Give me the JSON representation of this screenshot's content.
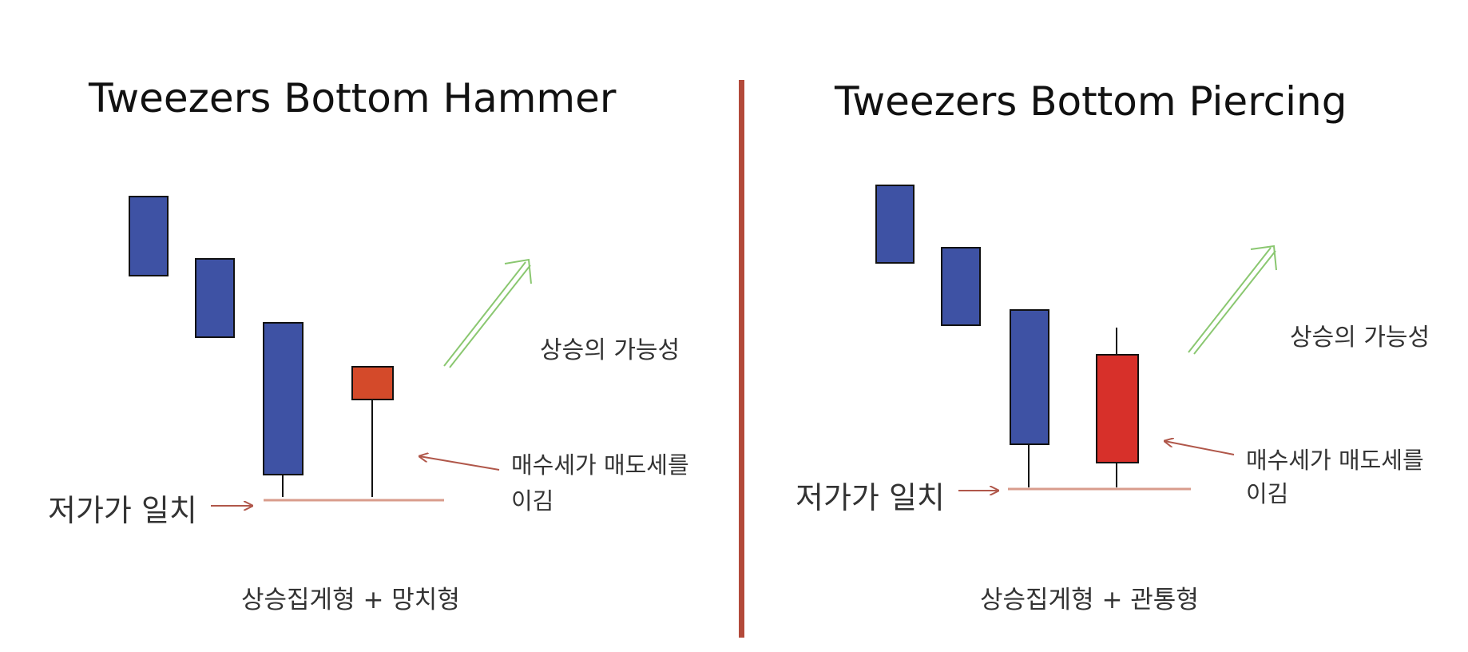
{
  "colors": {
    "bearish": "#3e52a4",
    "bullish_small": "#d44a2a",
    "bullish_large": "#d7302a",
    "divider": "#b34a3a",
    "arrow": "#b0574a",
    "support_line": "#d99c8c",
    "up_arrow": "#8ac770"
  },
  "panels": [
    {
      "title": "Tweezers Bottom Hammer",
      "rise_label": "상승의 가능성",
      "buy_label_line1": "매수세가 매도세를",
      "buy_label_line2": "이김",
      "low_label": "저가가 일치",
      "caption": "상승집게형 + 망치형"
    },
    {
      "title": "Tweezers Bottom Piercing",
      "rise_label": "상승의 가능성",
      "buy_label_line1": "매수세가 매도세를",
      "buy_label_line2": "이김",
      "low_label": "저가가 일치",
      "caption": "상승집게형 + 관통형"
    }
  ]
}
